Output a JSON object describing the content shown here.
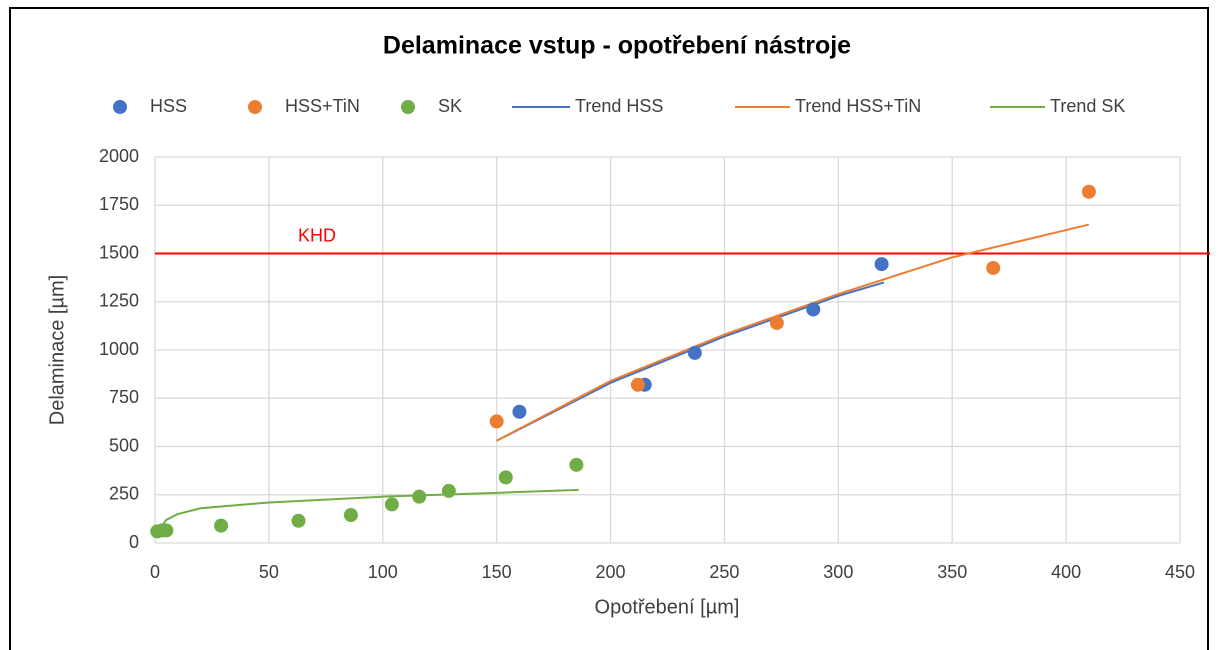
{
  "chart_data": {
    "type": "scatter",
    "title": "Delaminace vstup - opotřebení nástroje",
    "xlabel": "Opotřebení [µm]",
    "ylabel": "Delaminace [µm]",
    "xlim": [
      0,
      450
    ],
    "ylim": [
      0,
      2000
    ],
    "xticks": [
      0,
      50,
      100,
      150,
      200,
      250,
      300,
      350,
      400,
      450
    ],
    "yticks": [
      0,
      250,
      500,
      750,
      1000,
      1250,
      1500,
      1750,
      2000
    ],
    "grid": true,
    "legend": "top",
    "hline": {
      "value": 1500,
      "label": "KHD",
      "color": "#ff0000"
    },
    "series": [
      {
        "name": "HSS",
        "kind": "scatter",
        "color": "#4472c4",
        "x": [
          160,
          215,
          237,
          289,
          319
        ],
        "values": [
          680,
          820,
          985,
          1210,
          1445
        ]
      },
      {
        "name": "HSS+TiN",
        "kind": "scatter",
        "color": "#ed7d31",
        "x": [
          150,
          212,
          273,
          368,
          410
        ],
        "values": [
          630,
          820,
          1140,
          1425,
          1820
        ]
      },
      {
        "name": "SK",
        "kind": "scatter",
        "color": "#70ad47",
        "x": [
          1,
          3,
          5,
          29,
          63,
          86,
          104,
          116,
          129,
          154,
          185
        ],
        "values": [
          60,
          65,
          65,
          90,
          115,
          145,
          200,
          240,
          270,
          340,
          405
        ]
      },
      {
        "name": "Trend HSS",
        "kind": "line",
        "color": "#4472c4",
        "x": [
          150,
          200,
          250,
          300,
          320
        ],
        "values": [
          530,
          830,
          1070,
          1280,
          1350
        ]
      },
      {
        "name": "Trend HSS+TiN",
        "kind": "line",
        "color": "#ed7d31",
        "x": [
          150,
          200,
          250,
          300,
          350,
          410
        ],
        "values": [
          530,
          840,
          1080,
          1290,
          1480,
          1650
        ]
      },
      {
        "name": "Trend SK",
        "kind": "line",
        "color": "#70ad47",
        "x": [
          1,
          5,
          10,
          20,
          50,
          100,
          150,
          186
        ],
        "values": [
          55,
          120,
          150,
          180,
          210,
          240,
          260,
          275
        ]
      }
    ]
  }
}
